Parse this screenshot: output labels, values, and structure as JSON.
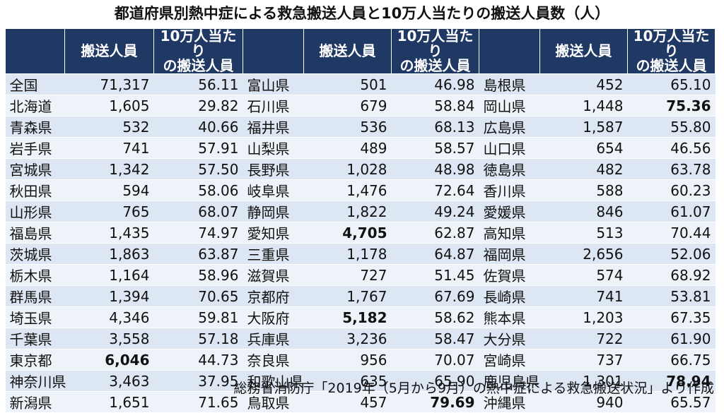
{
  "title": "都道府県別熱中症による救急搬送人員と10万人当たりの搬送人員数（人）",
  "headers": {
    "transported": "搬送人員",
    "per100k_line1": "10万人当たり",
    "per100k_line2": "の搬送人員"
  },
  "rows": [
    [
      {
        "n": "全国",
        "t": "71,317",
        "r": "56.11"
      },
      {
        "n": "富山県",
        "t": "501",
        "r": "46.98"
      },
      {
        "n": "島根県",
        "t": "452",
        "r": "65.10"
      }
    ],
    [
      {
        "n": "北海道",
        "t": "1,605",
        "r": "29.82"
      },
      {
        "n": "石川県",
        "t": "679",
        "r": "58.84"
      },
      {
        "n": "岡山県",
        "t": "1,448",
        "r": "75.36",
        "rb": true
      }
    ],
    [
      {
        "n": "青森県",
        "t": "532",
        "r": "40.66"
      },
      {
        "n": "福井県",
        "t": "536",
        "r": "68.13"
      },
      {
        "n": "広島県",
        "t": "1,587",
        "r": "55.80"
      }
    ],
    [
      {
        "n": "岩手県",
        "t": "741",
        "r": "57.91"
      },
      {
        "n": "山梨県",
        "t": "489",
        "r": "58.57"
      },
      {
        "n": "山口県",
        "t": "654",
        "r": "46.56"
      }
    ],
    [
      {
        "n": "宮城県",
        "t": "1,342",
        "r": "57.50"
      },
      {
        "n": "長野県",
        "t": "1,028",
        "r": "48.98"
      },
      {
        "n": "徳島県",
        "t": "482",
        "r": "63.78"
      }
    ],
    [
      {
        "n": "秋田県",
        "t": "594",
        "r": "58.06"
      },
      {
        "n": "岐阜県",
        "t": "1,476",
        "r": "72.64"
      },
      {
        "n": "香川県",
        "t": "588",
        "r": "60.23"
      }
    ],
    [
      {
        "n": "山形県",
        "t": "765",
        "r": "68.07"
      },
      {
        "n": "静岡県",
        "t": "1,822",
        "r": "49.24"
      },
      {
        "n": "愛媛県",
        "t": "846",
        "r": "61.07"
      }
    ],
    [
      {
        "n": "福島県",
        "t": "1,435",
        "r": "74.97"
      },
      {
        "n": "愛知県",
        "t": "4,705",
        "r": "62.87",
        "tb": true
      },
      {
        "n": "高知県",
        "t": "513",
        "r": "70.44"
      }
    ],
    [
      {
        "n": "茨城県",
        "t": "1,863",
        "r": "63.87"
      },
      {
        "n": "三重県",
        "t": "1,178",
        "r": "64.87"
      },
      {
        "n": "福岡県",
        "t": "2,656",
        "r": "52.06"
      }
    ],
    [
      {
        "n": "栃木県",
        "t": "1,164",
        "r": "58.96"
      },
      {
        "n": "滋賀県",
        "t": "727",
        "r": "51.45"
      },
      {
        "n": "佐賀県",
        "t": "574",
        "r": "68.92"
      }
    ],
    [
      {
        "n": "群馬県",
        "t": "1,394",
        "r": "70.65"
      },
      {
        "n": "京都府",
        "t": "1,767",
        "r": "67.69"
      },
      {
        "n": "長崎県",
        "t": "741",
        "r": "53.81"
      }
    ],
    [
      {
        "n": "埼玉県",
        "t": "4,346",
        "r": "59.81"
      },
      {
        "n": "大阪府",
        "t": "5,182",
        "r": "58.62",
        "tb": true
      },
      {
        "n": "熊本県",
        "t": "1,203",
        "r": "67.35"
      }
    ],
    [
      {
        "n": "千葉県",
        "t": "3,558",
        "r": "57.18"
      },
      {
        "n": "兵庫県",
        "t": "3,236",
        "r": "58.47"
      },
      {
        "n": "大分県",
        "t": "722",
        "r": "61.90"
      }
    ],
    [
      {
        "n": "東京都",
        "t": "6,046",
        "r": "44.73",
        "tb": true
      },
      {
        "n": "奈良県",
        "t": "956",
        "r": "70.07"
      },
      {
        "n": "宮崎県",
        "t": "737",
        "r": "66.75"
      }
    ],
    [
      {
        "n": "神奈川県",
        "t": "3,463",
        "r": "37.95"
      },
      {
        "n": "和歌山県",
        "t": "635",
        "r": "65.90"
      },
      {
        "n": "鹿児島県",
        "t": "1,301",
        "r": "78.94",
        "rb": true
      }
    ],
    [
      {
        "n": "新潟県",
        "t": "1,651",
        "r": "71.65"
      },
      {
        "n": "鳥取県",
        "t": "457",
        "r": "79.69",
        "rb": true
      },
      {
        "n": "沖縄県",
        "t": "940",
        "r": "65.57"
      }
    ]
  ],
  "source": "総務省消防庁「2019年（5月から9月）の熱中症による救急搬送状況」より作成",
  "colors": {
    "header_bg": "#1f3864",
    "row_even": "#dde6f3",
    "row_odd": "#eef3fa"
  }
}
